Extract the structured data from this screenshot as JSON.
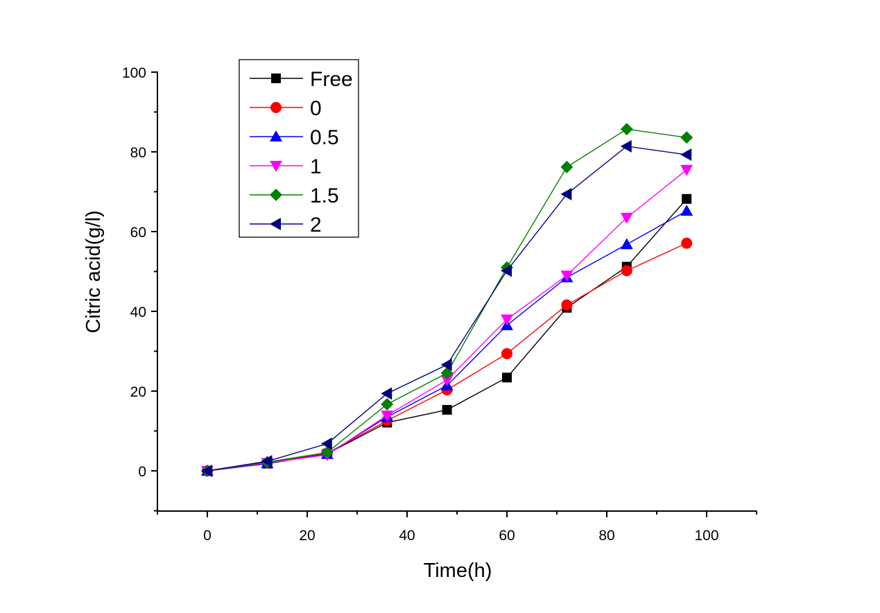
{
  "chart_data": {
    "type": "line",
    "title": "",
    "xlabel": "Time(h)",
    "ylabel": "Citric acid(g/l)",
    "xlim": [
      -10,
      110
    ],
    "ylim": [
      -10,
      100
    ],
    "xticks": [
      0,
      20,
      40,
      60,
      80,
      100
    ],
    "yticks": [
      0,
      20,
      40,
      60,
      80,
      100
    ],
    "x_minor_step": 10,
    "y_minor_step": 10,
    "grid": false,
    "legend_position": "top-left",
    "x": [
      0,
      12,
      24,
      36,
      48,
      60,
      72,
      84,
      96
    ],
    "series": [
      {
        "name": "Free",
        "color": "#000000",
        "marker": "square",
        "values": [
          0,
          1.8,
          4.3,
          12.1,
          15.3,
          23.4,
          40.9,
          51.2,
          68.2
        ]
      },
      {
        "name": "0",
        "color": "#ff0000",
        "marker": "circle",
        "values": [
          0,
          2.0,
          4.4,
          12.6,
          20.3,
          29.4,
          41.6,
          50.2,
          57.1
        ]
      },
      {
        "name": "0.5",
        "color": "#0000ff",
        "marker": "triangle-up",
        "values": [
          0,
          1.9,
          4.2,
          13.5,
          21.4,
          36.5,
          48.5,
          56.8,
          65.2
        ]
      },
      {
        "name": "1",
        "color": "#ff00ff",
        "marker": "triangle-down",
        "values": [
          0,
          2.0,
          4.0,
          13.9,
          22.8,
          38.0,
          49.0,
          63.5,
          75.5
        ]
      },
      {
        "name": "1.5",
        "color": "#008000",
        "marker": "diamond",
        "values": [
          0,
          2.2,
          4.6,
          16.7,
          24.5,
          51.0,
          76.2,
          85.7,
          83.6
        ]
      },
      {
        "name": "2",
        "color": "#000080",
        "marker": "triangle-left",
        "values": [
          0,
          2.4,
          6.8,
          19.4,
          26.6,
          50.2,
          69.4,
          81.4,
          79.3
        ]
      }
    ]
  }
}
